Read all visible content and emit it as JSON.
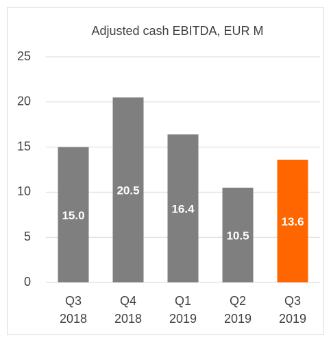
{
  "chart_data": {
    "type": "bar",
    "title": "Adjusted cash EBITDA, EUR M",
    "categories": [
      [
        "Q3",
        "2018"
      ],
      [
        "Q4",
        "2018"
      ],
      [
        "Q1",
        "2019"
      ],
      [
        "Q2",
        "2019"
      ],
      [
        "Q3",
        "2019"
      ]
    ],
    "values": [
      15.0,
      20.5,
      16.4,
      10.5,
      13.6
    ],
    "value_labels": [
      "15.0",
      "20.5",
      "16.4",
      "10.5",
      "13.6"
    ],
    "colors": [
      "#7f7f7f",
      "#7f7f7f",
      "#7f7f7f",
      "#7f7f7f",
      "#ff6600"
    ],
    "ylim": [
      0,
      25
    ],
    "yticks": [
      0,
      5,
      10,
      15,
      20,
      25
    ],
    "grid": true
  }
}
